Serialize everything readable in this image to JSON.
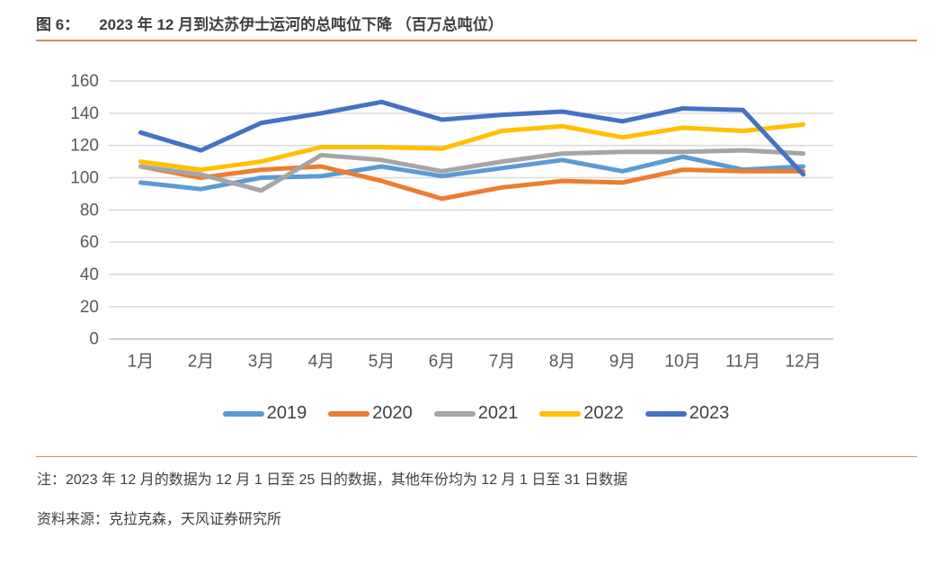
{
  "header": {
    "figure_label": "图 6：",
    "title": "2023 年 12 月到达苏伊士运河的总吨位下降 （百万总吨位）"
  },
  "chart_data": {
    "type": "line",
    "categories": [
      "1月",
      "2月",
      "3月",
      "4月",
      "5月",
      "6月",
      "7月",
      "8月",
      "9月",
      "10月",
      "11月",
      "12月"
    ],
    "series": [
      {
        "name": "2019",
        "color": "#5B9BD5",
        "values": [
          97,
          93,
          100,
          101,
          107,
          101,
          106,
          111,
          104,
          113,
          105,
          107
        ]
      },
      {
        "name": "2020",
        "color": "#ED7D31",
        "values": [
          107,
          100,
          105,
          107,
          98,
          87,
          94,
          98,
          97,
          105,
          104,
          104
        ]
      },
      {
        "name": "2021",
        "color": "#A5A5A5",
        "values": [
          107,
          102,
          92,
          114,
          111,
          104,
          110,
          115,
          116,
          116,
          117,
          115
        ]
      },
      {
        "name": "2022",
        "color": "#FFC000",
        "values": [
          110,
          105,
          110,
          119,
          119,
          118,
          129,
          132,
          125,
          131,
          129,
          133
        ]
      },
      {
        "name": "2023",
        "color": "#4472C4",
        "values": [
          128,
          117,
          134,
          140,
          147,
          136,
          139,
          141,
          135,
          143,
          142,
          102
        ]
      }
    ],
    "ylim": [
      0,
      160
    ],
    "ytick_step": 20,
    "ytick_labels": [
      "0",
      "20",
      "40",
      "60",
      "80",
      "100",
      "120",
      "140",
      "160"
    ],
    "grid": "horizontal",
    "legend_position": "bottom",
    "title": "2023 年 12 月到达苏伊士运河的总吨位下降 （百万总吨位）",
    "xlabel": "",
    "ylabel": ""
  },
  "footer": {
    "note": "注：2023 年 12 月的数据为 12 月 1 日至 25 日的数据，其他年份均为 12 月 1 日至 31 日数据",
    "source": "资料来源：克拉克森，天风证券研究所"
  },
  "colors": {
    "divider": "#cb9156",
    "grid_line": "#D9D9D9",
    "baseline": "#BFBFBF",
    "axis_text": "#595959",
    "title_text": "#3f3f3f"
  }
}
